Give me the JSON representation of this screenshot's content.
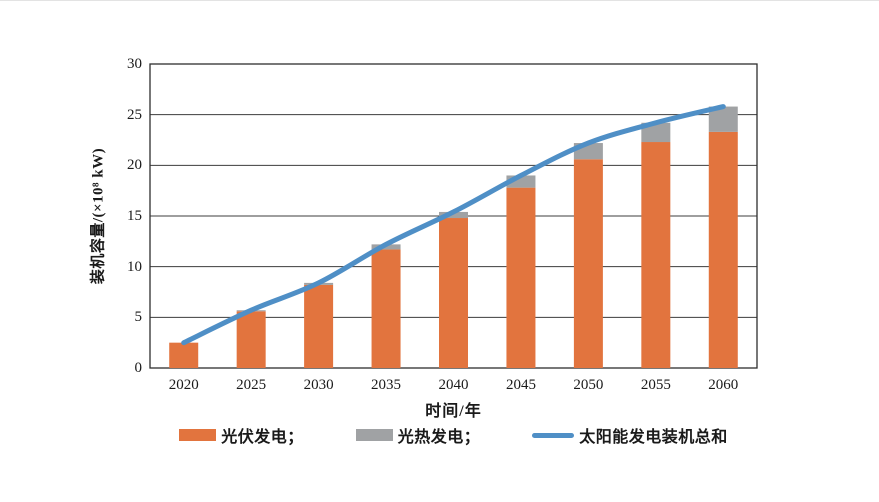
{
  "figure": {
    "background": "#ffffff"
  },
  "chart_data": {
    "type": "bar",
    "stacked": true,
    "title": "",
    "xlabel": "时间/年",
    "ylabel": "装机容量/(×10⁸ kW)",
    "categories": [
      "2020",
      "2025",
      "2030",
      "2035",
      "2040",
      "2045",
      "2050",
      "2055",
      "2060"
    ],
    "series": [
      {
        "name": "光伏发电",
        "type": "bar",
        "color": "#E2743E",
        "values": [
          2.5,
          5.6,
          8.2,
          11.7,
          14.8,
          17.8,
          20.6,
          22.3,
          23.3
        ]
      },
      {
        "name": "光热发电",
        "type": "bar",
        "color": "#A0A2A4",
        "values": [
          0,
          0.1,
          0.2,
          0.5,
          0.6,
          1.2,
          1.6,
          1.9,
          2.5
        ]
      },
      {
        "name": "太阳能发电装机总和",
        "type": "line",
        "color": "#4F8FC6",
        "values": [
          2.5,
          5.7,
          8.4,
          12.2,
          15.4,
          19.0,
          22.2,
          24.2,
          25.8
        ]
      }
    ],
    "legend": [
      {
        "label": "光伏发电；",
        "swatch": "bar",
        "color": "#E2743E"
      },
      {
        "label": "光热发电；",
        "swatch": "bar",
        "color": "#A0A2A4"
      },
      {
        "label": "太阳能发电装机总和",
        "swatch": "line",
        "color": "#4F8FC6"
      }
    ],
    "ylim": [
      0,
      30
    ],
    "ytick_step": 5,
    "yticks": [
      "0",
      "5",
      "10",
      "15",
      "20",
      "25",
      "30"
    ],
    "grid": "horizontal",
    "grid_color": "#3c3c3c",
    "frame_color": "#2e2e2e",
    "legend_position": "bottom"
  }
}
